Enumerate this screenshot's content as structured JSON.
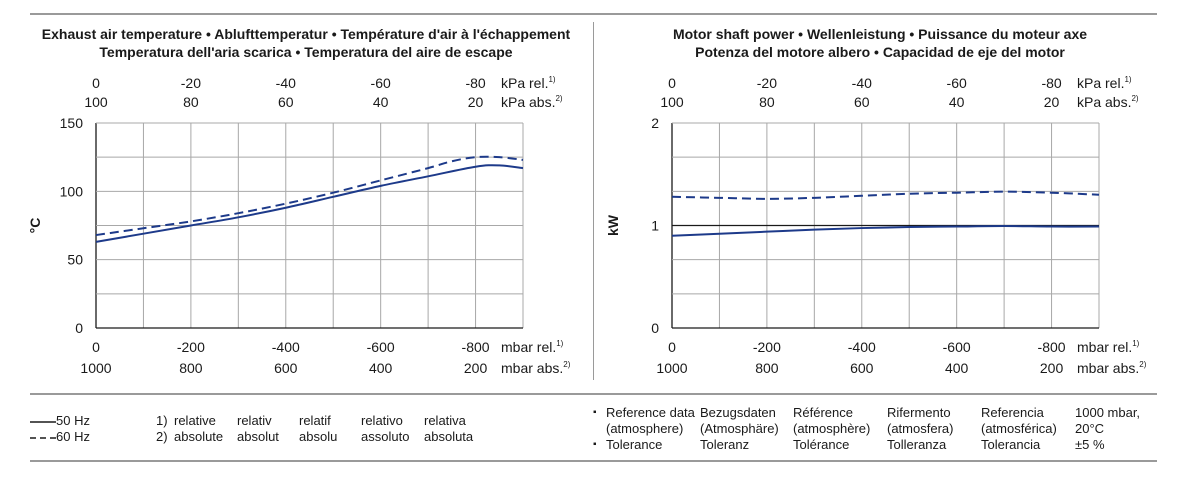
{
  "chart_data": [
    {
      "type": "line",
      "title_lines": [
        "Exhaust air temperature  •  Ablufttemperatur  •  Température d'air à l'échappement",
        "Temperatura dell'aria scarica  •  Temperatura del aire de escape"
      ],
      "ylabel": "°C",
      "ylim": [
        0,
        150
      ],
      "yticks": [
        "0",
        "50",
        "100",
        "150"
      ],
      "xlim": [
        0,
        -900
      ],
      "bottom_ticks": [
        {
          "x": 0,
          "rel": "0",
          "abs": "1000"
        },
        {
          "x": -200,
          "rel": "-200",
          "abs": "800"
        },
        {
          "x": -400,
          "rel": "-400",
          "abs": "600"
        },
        {
          "x": -600,
          "rel": "-600",
          "abs": "400"
        },
        {
          "x": -800,
          "rel": "-800",
          "abs": "200"
        }
      ],
      "top_ticks": [
        {
          "x": 0,
          "rel": "0",
          "abs": "100"
        },
        {
          "x": -200,
          "rel": "-20",
          "abs": "80"
        },
        {
          "x": -400,
          "rel": "-40",
          "abs": "60"
        },
        {
          "x": -600,
          "rel": "-60",
          "abs": "40"
        },
        {
          "x": -800,
          "rel": "-80",
          "abs": "20"
        }
      ],
      "top_units": {
        "rel": "kPa rel.",
        "rel_sup": "1)",
        "abs": "kPa abs.",
        "abs_sup": "2)"
      },
      "bottom_units": {
        "rel": "mbar rel.",
        "rel_sup": "1)",
        "abs": "mbar abs.",
        "abs_sup": "2)"
      },
      "series": [
        {
          "name": "50 Hz",
          "style": "solid",
          "x": [
            0,
            -100,
            -200,
            -300,
            -400,
            -500,
            -600,
            -700,
            -800,
            -850,
            -900
          ],
          "y": [
            63,
            69,
            75,
            81,
            88,
            96,
            104,
            111,
            118,
            119,
            117
          ]
        },
        {
          "name": "60 Hz",
          "style": "dashed",
          "x": [
            0,
            -100,
            -200,
            -300,
            -400,
            -500,
            -600,
            -700,
            -750,
            -800,
            -850,
            -900
          ],
          "y": [
            68,
            73,
            78,
            84,
            91,
            99,
            108,
            117,
            122,
            125,
            125,
            123
          ]
        }
      ]
    },
    {
      "type": "line",
      "title_lines": [
        "Motor shaft power  •  Wellenleistung  •  Puissance du moteur axe",
        "Potenza del motore albero  •  Capacidad de eje del motor"
      ],
      "ylabel": "kW",
      "ylim": [
        0,
        2
      ],
      "yticks": [
        "0",
        "1",
        "2"
      ],
      "xlim": [
        0,
        -900
      ],
      "bottom_ticks": [
        {
          "x": 0,
          "rel": "0",
          "abs": "1000"
        },
        {
          "x": -200,
          "rel": "-200",
          "abs": "800"
        },
        {
          "x": -400,
          "rel": "-400",
          "abs": "600"
        },
        {
          "x": -600,
          "rel": "-600",
          "abs": "400"
        },
        {
          "x": -800,
          "rel": "-800",
          "abs": "200"
        }
      ],
      "top_ticks": [
        {
          "x": 0,
          "rel": "0",
          "abs": "100"
        },
        {
          "x": -200,
          "rel": "-20",
          "abs": "80"
        },
        {
          "x": -400,
          "rel": "-40",
          "abs": "60"
        },
        {
          "x": -600,
          "rel": "-60",
          "abs": "40"
        },
        {
          "x": -800,
          "rel": "-80",
          "abs": "20"
        }
      ],
      "top_units": {
        "rel": "kPa rel.",
        "rel_sup": "1)",
        "abs": "kPa abs.",
        "abs_sup": "2)"
      },
      "bottom_units": {
        "rel": "mbar rel.",
        "rel_sup": "1)",
        "abs": "mbar abs.",
        "abs_sup": "2)"
      },
      "series": [
        {
          "name": "50 Hz",
          "style": "solid",
          "x": [
            0,
            -100,
            -200,
            -300,
            -400,
            -500,
            -600,
            -700,
            -800,
            -900
          ],
          "y": [
            0.9,
            0.92,
            0.94,
            0.96,
            0.975,
            0.985,
            0.99,
            0.995,
            0.99,
            0.99
          ]
        },
        {
          "name": "60 Hz",
          "style": "dashed",
          "x": [
            0,
            -100,
            -200,
            -300,
            -400,
            -500,
            -600,
            -700,
            -800,
            -900
          ],
          "y": [
            1.28,
            1.27,
            1.26,
            1.27,
            1.29,
            1.31,
            1.32,
            1.33,
            1.32,
            1.3
          ]
        }
      ]
    }
  ],
  "colors": {
    "line": "#1d3a8a",
    "grid": "#a8a8a8",
    "rule": "#9a9a9a"
  },
  "legend": {
    "hz50": "50 Hz",
    "hz60": "60 Hz",
    "notes": [
      {
        "num": "1)",
        "cols": [
          "relative",
          "relativ",
          "relatif",
          "relativo",
          "relativa"
        ]
      },
      {
        "num": "2)",
        "cols": [
          "absolute",
          "absolut",
          "absolu",
          "assoluto",
          "absoluta"
        ]
      }
    ],
    "reference": {
      "bullet": "▪",
      "row1": [
        "Reference data",
        "Bezugsdaten",
        "Référence",
        "Rifermento",
        "Referencia",
        "1000 mbar,"
      ],
      "row2": [
        "(atmosphere)",
        "(Atmosphäre)",
        "(atmosphère)",
        "(atmosfera)",
        "(atmosférica)",
        "20°C"
      ],
      "row3": [
        "Tolerance",
        "Toleranz",
        "Tolérance",
        "Tolleranza",
        "Tolerancia",
        "±5 %"
      ]
    }
  }
}
